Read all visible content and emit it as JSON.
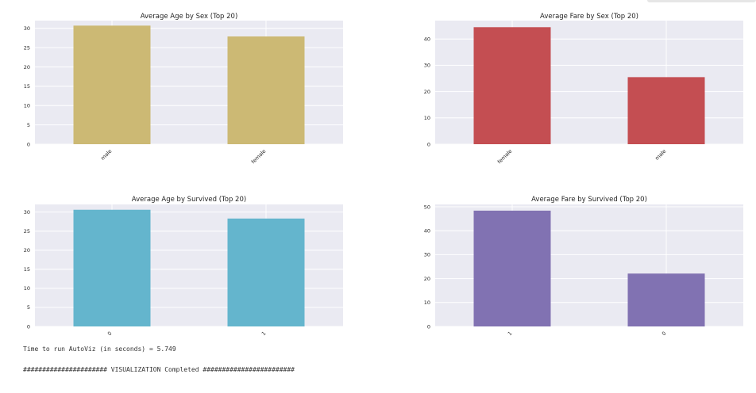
{
  "chart_data": [
    {
      "type": "bar",
      "title": "Average Age by Sex (Top 20)",
      "categories": [
        "male",
        "female"
      ],
      "values": [
        30.7,
        27.9
      ],
      "ylim": [
        0,
        32
      ],
      "yticks": [
        0,
        5,
        10,
        15,
        20,
        25,
        30
      ],
      "xtick_rotation": 45,
      "color": "#ccb974",
      "grid": true
    },
    {
      "type": "bar",
      "title": "Average Fare by Sex (Top 20)",
      "categories": [
        "female",
        "male"
      ],
      "values": [
        44.5,
        25.5
      ],
      "ylim": [
        0,
        47
      ],
      "yticks": [
        0,
        10,
        20,
        30,
        40
      ],
      "xtick_rotation": 45,
      "color": "#c44e52",
      "grid": true
    },
    {
      "type": "bar",
      "title": "Average Age by Survived (Top 20)",
      "categories": [
        "0",
        "1"
      ],
      "values": [
        30.6,
        28.3
      ],
      "ylim": [
        0,
        32
      ],
      "yticks": [
        0,
        5,
        10,
        15,
        20,
        25,
        30
      ],
      "xtick_rotation": 45,
      "color": "#64b5cd",
      "grid": true
    },
    {
      "type": "bar",
      "title": "Average Fare by Survived (Top 20)",
      "categories": [
        "1",
        "0"
      ],
      "values": [
        48.4,
        22.1
      ],
      "ylim": [
        0,
        51
      ],
      "yticks": [
        0,
        10,
        20,
        30,
        40,
        50
      ],
      "xtick_rotation": 45,
      "color": "#8172b2",
      "grid": true
    }
  ],
  "output": {
    "runtime": "Time to run AutoViz (in seconds) = 5.749",
    "completed": "###################### VISUALIZATION Completed ########################"
  }
}
